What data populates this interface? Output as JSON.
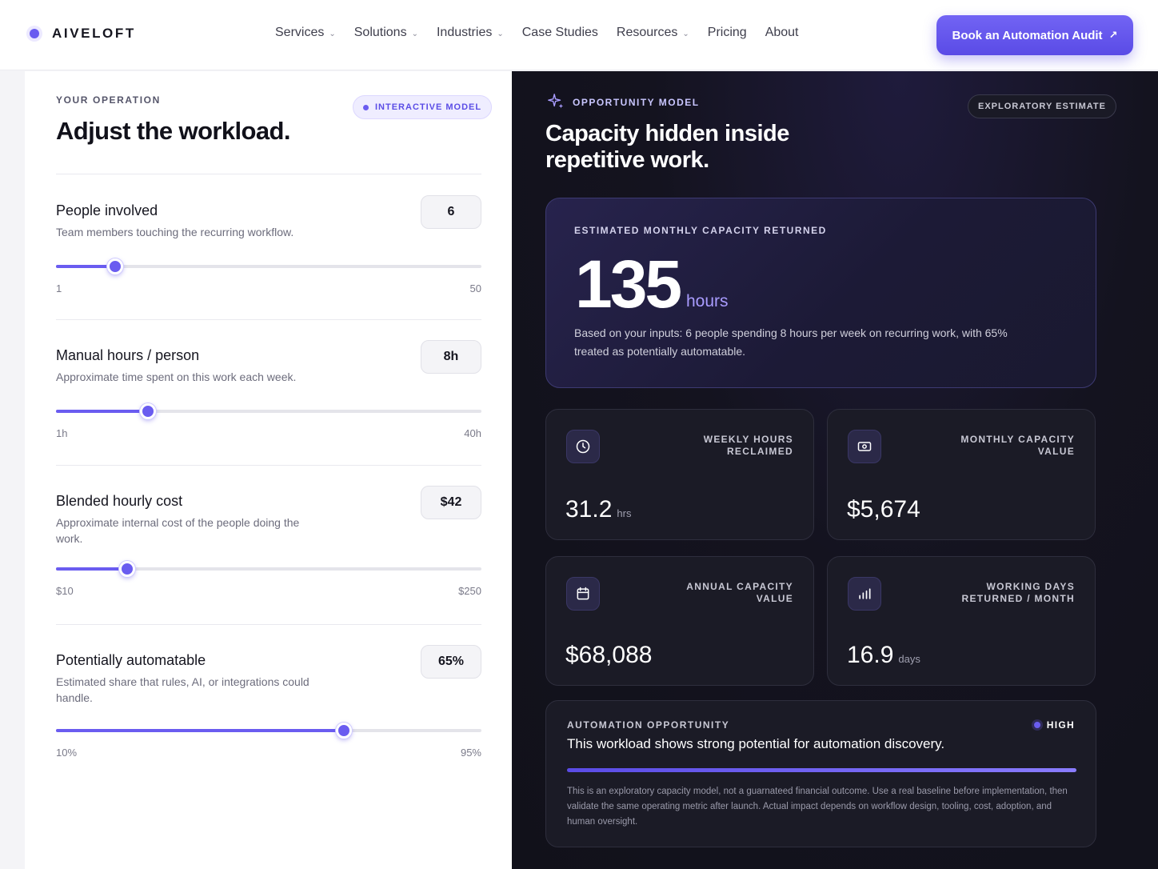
{
  "nav": {
    "brand": "AIVELOFT",
    "items": [
      {
        "label": "Services",
        "dropdown": true
      },
      {
        "label": "Solutions",
        "dropdown": true
      },
      {
        "label": "Industries",
        "dropdown": true
      },
      {
        "label": "Case Studies",
        "dropdown": false
      },
      {
        "label": "Resources",
        "dropdown": true
      },
      {
        "label": "Pricing",
        "dropdown": false
      },
      {
        "label": "About",
        "dropdown": false
      }
    ],
    "cta": "Book an Automation Audit"
  },
  "left": {
    "eyebrow": "YOUR OPERATION",
    "title": "Adjust the workload.",
    "pill": "INTERACTIVE MODEL",
    "controls": [
      {
        "title": "People involved",
        "desc": "Team members touching the recurring workflow.",
        "value": "6",
        "min": "1",
        "max": "50",
        "fraction": 0.139
      },
      {
        "title": "Manual hours / person",
        "desc": "Approximate time spent on this work each week.",
        "value": "8h",
        "min": "1h",
        "max": "40h",
        "fraction": 0.216
      },
      {
        "title": "Blended hourly cost",
        "desc": "Approximate internal cost of the people doing the work.",
        "value": "$42",
        "min": "$10",
        "max": "$250",
        "fraction": 0.167
      },
      {
        "title": "Potentially automatable",
        "desc": "Estimated share that rules, AI, or integrations could handle.",
        "value": "65%",
        "min": "10%",
        "max": "95%",
        "fraction": 0.677
      }
    ]
  },
  "right": {
    "eyebrow": "OPPORTUNITY MODEL",
    "title": "Capacity hidden inside repetitive work.",
    "chip": "EXPLORATORY ESTIMATE",
    "hero": {
      "eyebrow": "ESTIMATED MONTHLY CAPACITY RETURNED",
      "number": "135",
      "unit": "hours",
      "desc": "Based on your inputs: 6 people spending 8 hours per week on recurring work, with 65% treated as potentially automatable."
    },
    "stats": [
      {
        "label": "WEEKLY HOURS RECLAIMED",
        "value": "31.2",
        "unit": "hrs",
        "icon": "clock-icon"
      },
      {
        "label": "MONTHLY CAPACITY VALUE",
        "value": "$5,674",
        "unit": "",
        "icon": "money-icon"
      },
      {
        "label": "ANNUAL CAPACITY VALUE",
        "value": "$68,088",
        "unit": "",
        "icon": "calendar-icon"
      },
      {
        "label": "WORKING DAYS RETURNED / MONTH",
        "value": "16.9",
        "unit": "days",
        "icon": "bar-chart-icon"
      }
    ],
    "opportunity": {
      "eyebrow": "AUTOMATION OPPORTUNITY",
      "badge": "HIGH",
      "title": "This workload shows strong potential for automation discovery.",
      "level": 1.0,
      "note": "This is an exploratory capacity model, not a guarnateed financial outcome. Use a real baseline before implementation, then validate the same operating metric after launch. Actual impact depends on workflow design, tooling, cost, adoption, and human oversight."
    }
  }
}
